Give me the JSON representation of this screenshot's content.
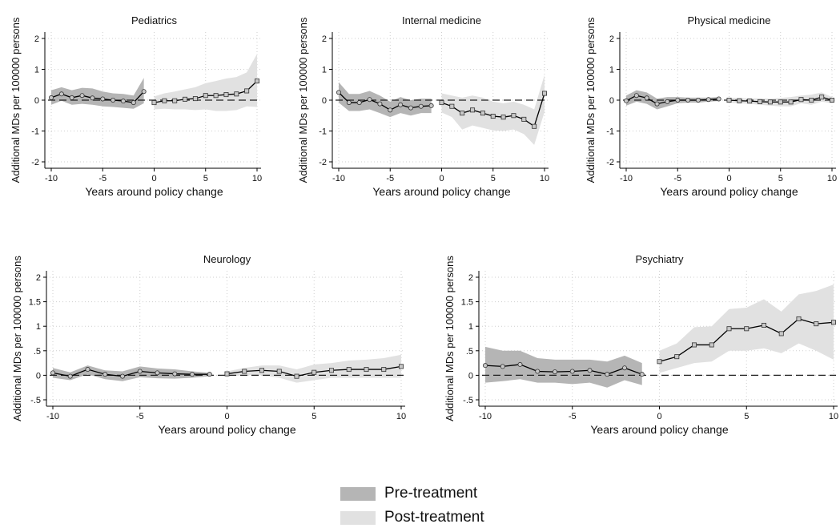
{
  "colors": {
    "pre_band": "#b5b5b5",
    "post_band": "#e1e1e1",
    "line": "#000000",
    "marker_fill": "#c8c8c8",
    "grid": "#cfcfcf"
  },
  "legend": {
    "pre_label": "Pre-treatment",
    "post_label": "Post-treatment"
  },
  "chart_data": [
    {
      "type": "line",
      "title": "Pediatrics",
      "xlabel": "Years around policy change",
      "ylabel": "Additional MDs per 100000 persons",
      "xlim": [
        -10,
        10
      ],
      "ylim": [
        -2,
        2
      ],
      "xticks": [
        -10,
        -5,
        0,
        5,
        10
      ],
      "xtick_labels": [
        "-10",
        "-5",
        "0",
        "5",
        "10"
      ],
      "yticks": [
        -2,
        -1,
        0,
        1,
        2
      ],
      "ytick_labels": [
        "-2",
        "-1",
        "0",
        "1",
        "2"
      ],
      "grid": true,
      "reference_line": 0,
      "series": [
        {
          "name": "Pre-treatment",
          "marker": "circle",
          "x": [
            -10,
            -9,
            -8,
            -7,
            -6,
            -5,
            -4,
            -3,
            -2,
            -1
          ],
          "y": [
            0.08,
            0.2,
            0.08,
            0.15,
            0.07,
            0.04,
            0.0,
            -0.03,
            -0.08,
            0.28
          ],
          "ci_lower": [
            -0.15,
            -0.02,
            -0.15,
            -0.12,
            -0.15,
            -0.2,
            -0.22,
            -0.25,
            -0.28,
            -0.1
          ],
          "ci_upper": [
            0.32,
            0.42,
            0.32,
            0.4,
            0.38,
            0.28,
            0.22,
            0.2,
            0.15,
            0.72
          ]
        },
        {
          "name": "Post-treatment",
          "marker": "square",
          "x": [
            0,
            1,
            2,
            3,
            4,
            5,
            6,
            7,
            8,
            9,
            10
          ],
          "y": [
            -0.08,
            -0.02,
            -0.02,
            0.03,
            0.05,
            0.15,
            0.15,
            0.18,
            0.2,
            0.3,
            0.62
          ],
          "ci_lower": [
            -0.3,
            -0.28,
            -0.3,
            -0.3,
            -0.32,
            -0.3,
            -0.35,
            -0.35,
            -0.32,
            -0.2,
            -0.22
          ],
          "ci_upper": [
            0.12,
            0.22,
            0.28,
            0.35,
            0.42,
            0.55,
            0.62,
            0.7,
            0.75,
            0.9,
            1.5
          ]
        }
      ]
    },
    {
      "type": "line",
      "title": "Internal medicine",
      "xlabel": "Years around policy change",
      "ylabel": "Additional MDs per 100000 persons",
      "xlim": [
        -10,
        10
      ],
      "ylim": [
        -2,
        2
      ],
      "xticks": [
        -10,
        -5,
        0,
        5,
        10
      ],
      "xtick_labels": [
        "-10",
        "-5",
        "0",
        "5",
        "10"
      ],
      "yticks": [
        -2,
        -1,
        0,
        1,
        2
      ],
      "ytick_labels": [
        "-2",
        "-1",
        "0",
        "1",
        "2"
      ],
      "grid": true,
      "reference_line": 0,
      "series": [
        {
          "name": "Pre-treatment",
          "marker": "circle",
          "x": [
            -10,
            -9,
            -8,
            -7,
            -6,
            -5,
            -4,
            -3,
            -2,
            -1
          ],
          "y": [
            0.25,
            -0.08,
            -0.08,
            0.02,
            -0.12,
            -0.32,
            -0.15,
            -0.25,
            -0.2,
            -0.18
          ],
          "ci_lower": [
            -0.08,
            -0.35,
            -0.35,
            -0.3,
            -0.42,
            -0.55,
            -0.42,
            -0.5,
            -0.42,
            -0.42
          ],
          "ci_upper": [
            0.58,
            0.2,
            0.2,
            0.3,
            0.15,
            -0.05,
            0.1,
            0.0,
            0.05,
            0.05
          ]
        },
        {
          "name": "Post-treatment",
          "marker": "square",
          "x": [
            0,
            1,
            2,
            3,
            4,
            5,
            6,
            7,
            8,
            9,
            10
          ],
          "y": [
            -0.08,
            -0.2,
            -0.42,
            -0.32,
            -0.42,
            -0.52,
            -0.55,
            -0.5,
            -0.62,
            -0.85,
            0.22
          ],
          "ci_lower": [
            -0.4,
            -0.55,
            -0.95,
            -0.82,
            -0.9,
            -0.98,
            -1.0,
            -0.95,
            -1.1,
            -1.45,
            -0.38
          ],
          "ci_upper": [
            0.22,
            0.15,
            0.08,
            0.15,
            0.08,
            -0.05,
            -0.1,
            -0.05,
            -0.15,
            -0.3,
            0.82
          ]
        }
      ]
    },
    {
      "type": "line",
      "title": "Physical medicine",
      "xlabel": "Years around policy change",
      "ylabel": "Additional MDs per 100000 persons",
      "xlim": [
        -10,
        10
      ],
      "ylim": [
        -2,
        2
      ],
      "xticks": [
        -10,
        -5,
        0,
        5,
        10
      ],
      "xtick_labels": [
        "-10",
        "-5",
        "0",
        "5",
        "10"
      ],
      "yticks": [
        -2,
        -1,
        0,
        1,
        2
      ],
      "ytick_labels": [
        "-2",
        "-1",
        "0",
        "1",
        "2"
      ],
      "grid": true,
      "reference_line": 0,
      "series": [
        {
          "name": "Pre-treatment",
          "marker": "circle",
          "x": [
            -10,
            -9,
            -8,
            -7,
            -6,
            -5,
            -4,
            -3,
            -2,
            -1
          ],
          "y": [
            -0.02,
            0.15,
            0.07,
            -0.12,
            -0.05,
            0.0,
            0.0,
            0.0,
            0.02,
            0.04
          ],
          "ci_lower": [
            -0.18,
            -0.05,
            -0.12,
            -0.3,
            -0.2,
            -0.1,
            -0.08,
            -0.08,
            -0.05,
            -0.03
          ],
          "ci_upper": [
            0.15,
            0.32,
            0.25,
            0.05,
            0.1,
            0.1,
            0.08,
            0.08,
            0.08,
            0.1
          ]
        },
        {
          "name": "Post-treatment",
          "marker": "square",
          "x": [
            0,
            1,
            2,
            3,
            4,
            5,
            6,
            7,
            8,
            9,
            10
          ],
          "y": [
            0.0,
            -0.02,
            -0.03,
            -0.05,
            -0.06,
            -0.06,
            -0.06,
            0.02,
            0.0,
            0.1,
            0.0
          ],
          "ci_lower": [
            -0.08,
            -0.1,
            -0.12,
            -0.15,
            -0.18,
            -0.2,
            -0.2,
            -0.1,
            -0.15,
            -0.05,
            -0.1
          ],
          "ci_upper": [
            0.08,
            0.07,
            0.06,
            0.06,
            0.05,
            0.07,
            0.1,
            0.15,
            0.18,
            0.25,
            0.1
          ]
        }
      ]
    },
    {
      "type": "line",
      "title": "Neurology",
      "xlabel": "Years around policy change",
      "ylabel": "Additional MDs per 100000 persons",
      "xlim": [
        -10,
        10
      ],
      "ylim": [
        -0.5,
        2
      ],
      "xticks": [
        -10,
        -5,
        0,
        5,
        10
      ],
      "xtick_labels": [
        "-10",
        "-5",
        "0",
        "5",
        "10"
      ],
      "yticks": [
        -0.5,
        0,
        0.5,
        1,
        1.5,
        2
      ],
      "ytick_labels": [
        "-.5",
        "0",
        ".5",
        "1",
        "1.5",
        "2"
      ],
      "grid": true,
      "reference_line": 0,
      "series": [
        {
          "name": "Pre-treatment",
          "marker": "circle",
          "x": [
            -10,
            -9,
            -8,
            -7,
            -6,
            -5,
            -4,
            -3,
            -2,
            -1
          ],
          "y": [
            0.05,
            -0.02,
            0.12,
            0.02,
            -0.02,
            0.08,
            0.05,
            0.03,
            0.02,
            0.02
          ],
          "ci_lower": [
            -0.05,
            -0.1,
            0.02,
            -0.08,
            -0.12,
            -0.04,
            -0.06,
            -0.07,
            -0.05,
            -0.02
          ],
          "ci_upper": [
            0.15,
            0.06,
            0.2,
            0.1,
            0.08,
            0.18,
            0.14,
            0.12,
            0.08,
            0.05
          ]
        },
        {
          "name": "Post-treatment",
          "marker": "square",
          "x": [
            0,
            1,
            2,
            3,
            4,
            5,
            6,
            7,
            8,
            9,
            10
          ],
          "y": [
            0.03,
            0.08,
            0.1,
            0.08,
            -0.02,
            0.06,
            0.1,
            0.12,
            0.12,
            0.12,
            0.18
          ],
          "ci_lower": [
            -0.02,
            0.0,
            0.0,
            -0.05,
            -0.15,
            -0.1,
            -0.05,
            -0.05,
            -0.05,
            -0.05,
            -0.05
          ],
          "ci_upper": [
            0.08,
            0.15,
            0.2,
            0.2,
            0.12,
            0.22,
            0.25,
            0.3,
            0.32,
            0.35,
            0.42
          ]
        }
      ]
    },
    {
      "type": "line",
      "title": "Psychiatry",
      "xlabel": "Years around policy change",
      "ylabel": "Additional MDs per 100000 persons",
      "xlim": [
        -10,
        10
      ],
      "ylim": [
        -0.5,
        2
      ],
      "xticks": [
        -10,
        -5,
        0,
        5,
        10
      ],
      "xtick_labels": [
        "-10",
        "-5",
        "0",
        "5",
        "10"
      ],
      "yticks": [
        -0.5,
        0,
        0.5,
        1,
        1.5,
        2
      ],
      "ytick_labels": [
        "-.5",
        "0",
        ".5",
        "1",
        "1.5",
        "2"
      ],
      "grid": true,
      "reference_line": 0,
      "series": [
        {
          "name": "Pre-treatment",
          "marker": "circle",
          "x": [
            -10,
            -9,
            -8,
            -7,
            -6,
            -5,
            -4,
            -3,
            -2,
            -1
          ],
          "y": [
            0.2,
            0.18,
            0.22,
            0.08,
            0.07,
            0.08,
            0.1,
            0.02,
            0.15,
            0.02
          ],
          "ci_lower": [
            -0.15,
            -0.12,
            -0.08,
            -0.15,
            -0.15,
            -0.18,
            -0.15,
            -0.25,
            -0.1,
            -0.2
          ],
          "ci_upper": [
            0.58,
            0.5,
            0.5,
            0.35,
            0.32,
            0.32,
            0.32,
            0.28,
            0.4,
            0.25
          ]
        },
        {
          "name": "Post-treatment",
          "marker": "square",
          "x": [
            0,
            1,
            2,
            3,
            4,
            5,
            6,
            7,
            8,
            9,
            10
          ],
          "y": [
            0.28,
            0.38,
            0.62,
            0.62,
            0.95,
            0.95,
            1.02,
            0.85,
            1.15,
            1.05,
            1.08
          ],
          "ci_lower": [
            0.05,
            0.15,
            0.25,
            0.28,
            0.5,
            0.5,
            0.55,
            0.45,
            0.65,
            0.5,
            0.32
          ],
          "ci_upper": [
            0.5,
            0.65,
            0.98,
            1.0,
            1.35,
            1.38,
            1.55,
            1.3,
            1.65,
            1.72,
            1.85
          ]
        }
      ]
    }
  ]
}
